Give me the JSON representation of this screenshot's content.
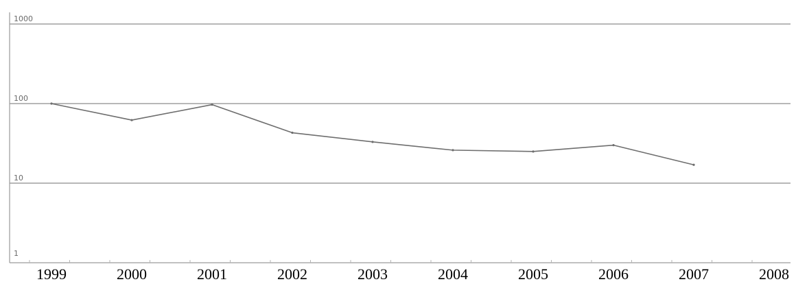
{
  "chart_data": {
    "type": "line",
    "title": "",
    "xlabel": "",
    "ylabel": "",
    "y_scale": "log",
    "ylim": [
      1,
      1000
    ],
    "y_ticks": [
      1000,
      100,
      10,
      1
    ],
    "y_tick_labels": [
      "1000",
      "100",
      "10",
      "1"
    ],
    "x_categories": [
      "1999",
      "2000",
      "2001",
      "2002",
      "2003",
      "2004",
      "2005",
      "2006",
      "2007",
      "2008"
    ],
    "series": [
      {
        "x": [
          "1999",
          "2000",
          "2001",
          "2002",
          "2003",
          "2004",
          "2005",
          "2006",
          "2007"
        ],
        "values": [
          100,
          62,
          97,
          43,
          33,
          26,
          25,
          30,
          17
        ]
      }
    ],
    "grid": true,
    "legend": "none",
    "colors": {
      "line": "#6e6e6e",
      "grid": "#8c8c8c",
      "axis": "#9a9a9a"
    }
  }
}
